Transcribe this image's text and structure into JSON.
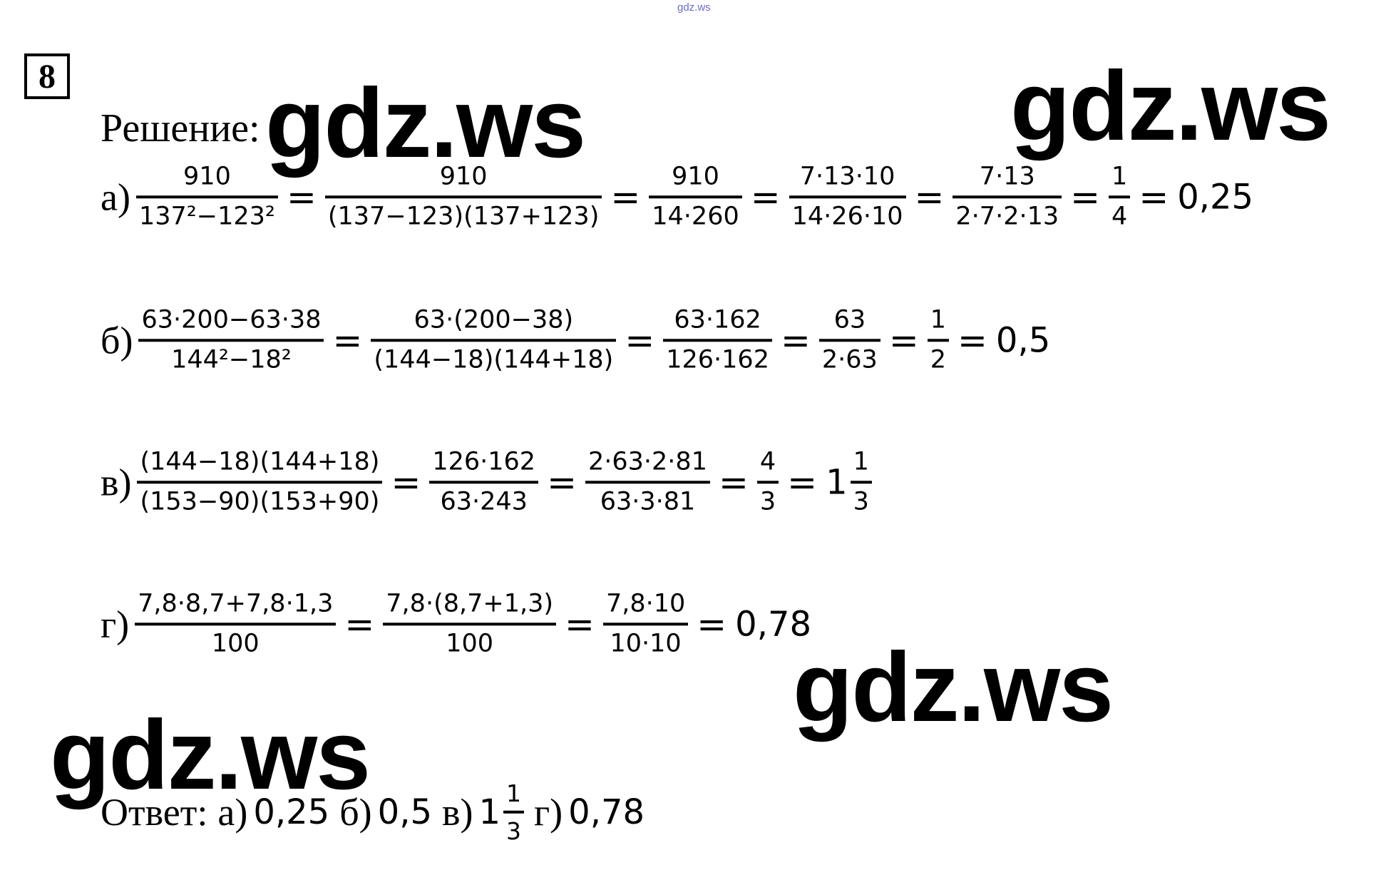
{
  "header": {
    "site": "gdz.ws",
    "number": "8"
  },
  "watermarks": [
    "gdz.ws",
    "gdz.ws",
    "gdz.ws",
    "gdz.ws"
  ],
  "solution_label": "Решение:",
  "equals": "=",
  "parts": [
    {
      "label": "а)",
      "items": [
        {
          "num": "910",
          "den": "137²−123²"
        },
        {
          "num": "910",
          "den": "(137−123)(137+123)"
        },
        {
          "num": "910",
          "den": "14·260"
        },
        {
          "num": "7·13·10",
          "den": "14·26·10"
        },
        {
          "num": "7·13",
          "den": "2·7·2·13"
        },
        {
          "num": "1",
          "den": "4"
        },
        {
          "text": "0,25"
        }
      ]
    },
    {
      "label": "б)",
      "items": [
        {
          "num": "63·200−63·38",
          "den": "144²−18²"
        },
        {
          "num": "63·(200−38)",
          "den": "(144−18)(144+18)"
        },
        {
          "num": "63·162",
          "den": "126·162"
        },
        {
          "num": "63",
          "den": "2·63"
        },
        {
          "num": "1",
          "den": "2"
        },
        {
          "text": "0,5"
        }
      ]
    },
    {
      "label": "в)",
      "items": [
        {
          "num": "(144−18)(144+18)",
          "den": "(153−90)(153+90)"
        },
        {
          "num": "126·162",
          "den": "63·243"
        },
        {
          "num": "2·63·2·81",
          "den": "63·3·81"
        },
        {
          "num": "4",
          "den": "3"
        },
        {
          "whole": "1",
          "num": "1",
          "den": "3"
        }
      ]
    },
    {
      "label": "г)",
      "items": [
        {
          "num": "7,8·8,7+7,8·1,3",
          "den": "100"
        },
        {
          "num": "7,8·(8,7+1,3)",
          "den": "100"
        },
        {
          "num": "7,8·10",
          "den": "10·10"
        },
        {
          "text": "0,78"
        }
      ]
    }
  ],
  "answer": {
    "label": "Ответ:",
    "items": [
      {
        "label": "а)",
        "text": "0,25"
      },
      {
        "label": "б)",
        "text": "0,5"
      },
      {
        "label": "в)",
        "whole": "1",
        "num": "1",
        "den": "3"
      },
      {
        "label": "г)",
        "text": "0,78"
      }
    ]
  }
}
